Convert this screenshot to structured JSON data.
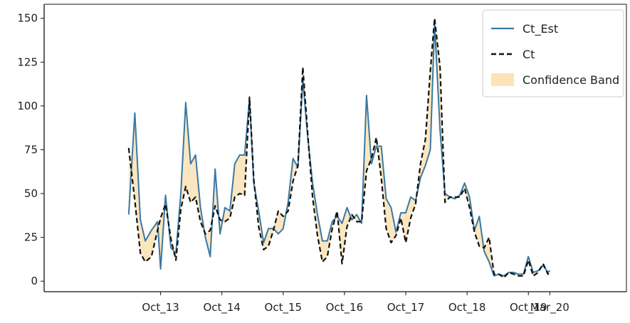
{
  "chart_data": {
    "type": "line",
    "title": "",
    "xlabel": "",
    "ylabel": "",
    "ylim": [
      -6,
      158
    ],
    "xlim": [
      -1.9,
      7.6
    ],
    "grid": false,
    "legend_position": "top-right",
    "yticks": [
      0,
      25,
      50,
      75,
      100,
      125,
      150
    ],
    "xticks": [
      {
        "x": 0,
        "label": "Oct_13"
      },
      {
        "x": 1,
        "label": "Oct_14"
      },
      {
        "x": 2,
        "label": "Oct_15"
      },
      {
        "x": 3,
        "label": "Oct_16"
      },
      {
        "x": 4,
        "label": "Oct_17"
      },
      {
        "x": 5,
        "label": "Oct_18"
      },
      {
        "x": 6,
        "label": "Oct_19"
      },
      {
        "x": 6.35,
        "label": "Mar_20"
      }
    ],
    "colors": {
      "ct_est": "#3a78a4",
      "ct": "#111111",
      "band": "#fbe4b8"
    },
    "legend": [
      {
        "label": "Ct_Est",
        "kind": "solid-line"
      },
      {
        "label": "Ct",
        "kind": "dashed-line"
      },
      {
        "label": "Confidence Band",
        "kind": "patch"
      }
    ],
    "series": [
      {
        "name": "Ct_Est",
        "points": [
          [
            -0.52,
            38
          ],
          [
            -0.42,
            96
          ],
          [
            -0.33,
            35
          ],
          [
            -0.25,
            23
          ],
          [
            -0.15,
            29
          ],
          [
            -0.05,
            34
          ],
          [
            0.0,
            7
          ],
          [
            0.08,
            49
          ],
          [
            0.17,
            19
          ],
          [
            0.25,
            16
          ],
          [
            0.33,
            50
          ],
          [
            0.41,
            102
          ],
          [
            0.49,
            67
          ],
          [
            0.57,
            72
          ],
          [
            0.65,
            42
          ],
          [
            0.73,
            25
          ],
          [
            0.81,
            14
          ],
          [
            0.89,
            64
          ],
          [
            0.97,
            27
          ],
          [
            1.05,
            42
          ],
          [
            1.13,
            40
          ],
          [
            1.21,
            67
          ],
          [
            1.29,
            72
          ],
          [
            1.37,
            72
          ],
          [
            1.45,
            104
          ],
          [
            1.52,
            56
          ],
          [
            1.6,
            40
          ],
          [
            1.68,
            22
          ],
          [
            1.76,
            30
          ],
          [
            1.84,
            30
          ],
          [
            1.92,
            27
          ],
          [
            2.0,
            30
          ],
          [
            2.08,
            45
          ],
          [
            2.16,
            70
          ],
          [
            2.24,
            65
          ],
          [
            2.32,
            115
          ],
          [
            2.4,
            82
          ],
          [
            2.48,
            56
          ],
          [
            2.56,
            38
          ],
          [
            2.64,
            23
          ],
          [
            2.72,
            23
          ],
          [
            2.8,
            34
          ],
          [
            2.88,
            37
          ],
          [
            2.96,
            33
          ],
          [
            3.04,
            42
          ],
          [
            3.12,
            35
          ],
          [
            3.2,
            38
          ],
          [
            3.28,
            33
          ],
          [
            3.36,
            106
          ],
          [
            3.44,
            67
          ],
          [
            3.52,
            77
          ],
          [
            3.6,
            77
          ],
          [
            3.68,
            47
          ],
          [
            3.76,
            42
          ],
          [
            3.84,
            28
          ],
          [
            3.92,
            39
          ],
          [
            4.0,
            39
          ],
          [
            4.08,
            48
          ],
          [
            4.16,
            46
          ],
          [
            4.24,
            59
          ],
          [
            4.32,
            66
          ],
          [
            4.4,
            75
          ],
          [
            4.47,
            147
          ],
          [
            4.56,
            86
          ],
          [
            4.64,
            50
          ],
          [
            4.72,
            48
          ],
          [
            4.8,
            47
          ],
          [
            4.88,
            49
          ],
          [
            4.96,
            56
          ],
          [
            5.04,
            48
          ],
          [
            5.12,
            29
          ],
          [
            5.2,
            37
          ],
          [
            5.28,
            17
          ],
          [
            5.36,
            11
          ],
          [
            5.44,
            3
          ],
          [
            5.52,
            4
          ],
          [
            5.6,
            3
          ],
          [
            5.68,
            5
          ],
          [
            5.76,
            5
          ],
          [
            5.84,
            4
          ],
          [
            5.92,
            4
          ],
          [
            6.0,
            14
          ],
          [
            6.08,
            5
          ],
          [
            6.16,
            6
          ],
          [
            6.24,
            9
          ],
          [
            6.32,
            5
          ],
          [
            6.35,
            6
          ]
        ]
      },
      {
        "name": "Ct",
        "points": [
          [
            -0.52,
            76
          ],
          [
            -0.42,
            46
          ],
          [
            -0.33,
            16
          ],
          [
            -0.25,
            11
          ],
          [
            -0.15,
            14
          ],
          [
            -0.05,
            29
          ],
          [
            0.0,
            36
          ],
          [
            0.08,
            44
          ],
          [
            0.17,
            24
          ],
          [
            0.25,
            12
          ],
          [
            0.33,
            41
          ],
          [
            0.41,
            54
          ],
          [
            0.49,
            45
          ],
          [
            0.57,
            48
          ],
          [
            0.65,
            34
          ],
          [
            0.73,
            27
          ],
          [
            0.81,
            29
          ],
          [
            0.89,
            43
          ],
          [
            0.97,
            35
          ],
          [
            1.05,
            34
          ],
          [
            1.13,
            36
          ],
          [
            1.21,
            48
          ],
          [
            1.29,
            50
          ],
          [
            1.37,
            49
          ],
          [
            1.45,
            105
          ],
          [
            1.52,
            58
          ],
          [
            1.6,
            31
          ],
          [
            1.68,
            18
          ],
          [
            1.76,
            20
          ],
          [
            1.84,
            29
          ],
          [
            1.92,
            40
          ],
          [
            2.0,
            37
          ],
          [
            2.08,
            40
          ],
          [
            2.16,
            57
          ],
          [
            2.24,
            66
          ],
          [
            2.32,
            122
          ],
          [
            2.4,
            84
          ],
          [
            2.48,
            48
          ],
          [
            2.56,
            26
          ],
          [
            2.64,
            11
          ],
          [
            2.72,
            14
          ],
          [
            2.8,
            30
          ],
          [
            2.88,
            40
          ],
          [
            2.96,
            10
          ],
          [
            3.04,
            31
          ],
          [
            3.12,
            38
          ],
          [
            3.2,
            34
          ],
          [
            3.28,
            34
          ],
          [
            3.36,
            63
          ],
          [
            3.44,
            70
          ],
          [
            3.52,
            82
          ],
          [
            3.6,
            59
          ],
          [
            3.68,
            30
          ],
          [
            3.76,
            22
          ],
          [
            3.84,
            26
          ],
          [
            3.92,
            36
          ],
          [
            4.0,
            22
          ],
          [
            4.08,
            36
          ],
          [
            4.16,
            44
          ],
          [
            4.24,
            67
          ],
          [
            4.32,
            81
          ],
          [
            4.4,
            120
          ],
          [
            4.47,
            150
          ],
          [
            4.56,
            122
          ],
          [
            4.64,
            45
          ],
          [
            4.72,
            48
          ],
          [
            4.8,
            48
          ],
          [
            4.88,
            48
          ],
          [
            4.96,
            53
          ],
          [
            5.04,
            42
          ],
          [
            5.12,
            28
          ],
          [
            5.2,
            20
          ],
          [
            5.28,
            19
          ],
          [
            5.36,
            25
          ],
          [
            5.44,
            4
          ],
          [
            5.52,
            4
          ],
          [
            5.6,
            2
          ],
          [
            5.68,
            5
          ],
          [
            5.76,
            4
          ],
          [
            5.84,
            3
          ],
          [
            5.92,
            3
          ],
          [
            6.0,
            12
          ],
          [
            6.08,
            3
          ],
          [
            6.16,
            5
          ],
          [
            6.24,
            10
          ],
          [
            6.32,
            4
          ],
          [
            6.35,
            6
          ]
        ]
      }
    ]
  }
}
